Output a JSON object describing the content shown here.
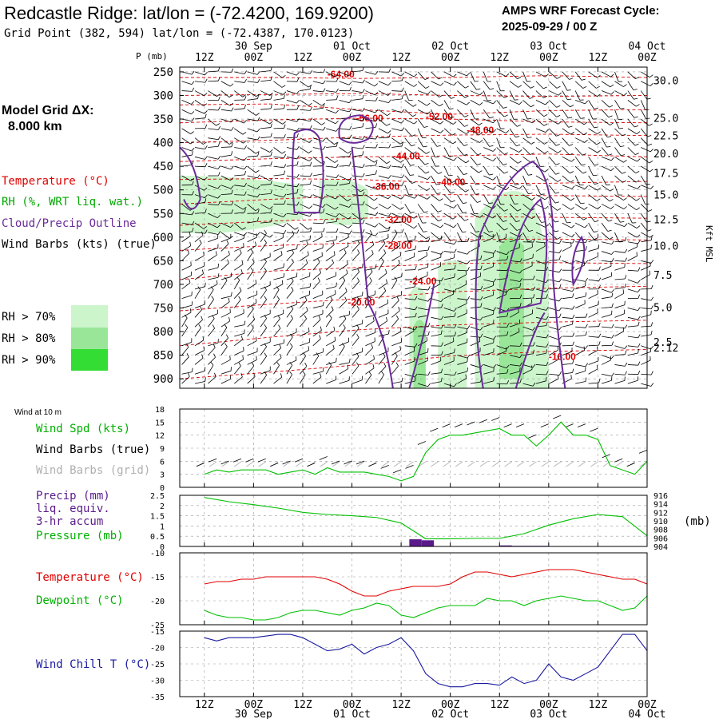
{
  "header": {
    "title": "Redcastle Ridge:  lat/lon = (-72.4200, 169.9200)",
    "subtitle": "Grid Point (382, 594) lat/lon = (-72.4387, 170.0123)",
    "cycle_label": "AMPS WRF Forecast Cycle:",
    "cycle_value": "2025-09-29 / 00  Z"
  },
  "time_axis": {
    "hours": [
      "12Z",
      "00Z",
      "12Z",
      "00Z",
      "12Z",
      "00Z",
      "12Z",
      "00Z",
      "12Z",
      "00Z"
    ],
    "dates": [
      "30 Sep",
      "01 Oct",
      "02 Oct",
      "03 Oct",
      "04 Oct"
    ]
  },
  "left_legend": {
    "grid_label": "Model Grid ΔX:",
    "grid_value": "8.000 km",
    "temperature": "Temperature (°C)",
    "rh": "RH (%, WRT liq. wat.)",
    "cloud": "Cloud/Precip Outline",
    "wind": "Wind Barbs (kts) (true)",
    "rh_levels": [
      "RH > 70%",
      "RH > 80%",
      "RH > 90%"
    ]
  },
  "colors": {
    "temperature": "#e00000",
    "dewpoint": "#00c000",
    "rh": "#00b000",
    "cloud": "#6a2a9a",
    "wind_chill": "#1a1aa0",
    "grid_wind": "#b0b0b0",
    "rh70": "#ccf5cc",
    "rh80": "#99e699",
    "rh90": "#33dd33",
    "precip": "#5a1a8a"
  },
  "chart_data": [
    {
      "type": "line",
      "name": "upper-air time-height section",
      "ylabel": "P (mb)",
      "ylabel_right": "Kft MSL",
      "pressure_ticks": [
        250,
        300,
        350,
        400,
        450,
        500,
        550,
        600,
        650,
        700,
        750,
        800,
        850,
        900
      ],
      "height_ticks": [
        {
          "label": "30.0",
          "p": 268
        },
        {
          "label": "25.0",
          "p": 347
        },
        {
          "label": "22.5",
          "p": 385
        },
        {
          "label": "20.0",
          "p": 423
        },
        {
          "label": "17.5",
          "p": 464
        },
        {
          "label": "15.0",
          "p": 510
        },
        {
          "label": "12.5",
          "p": 562
        },
        {
          "label": "10.0",
          "p": 618
        },
        {
          "label": "7.5",
          "p": 680
        },
        {
          "label": "5.0",
          "p": 748
        },
        {
          "label": "2.5",
          "p": 822
        },
        {
          "label": "2.12",
          "p": 834
        }
      ],
      "ylim": [
        240,
        920
      ],
      "temperature_labels": [
        {
          "text": "-64.00",
          "hour": 42,
          "p": 262
        },
        {
          "text": "-56.00",
          "hour": 49,
          "p": 355
        },
        {
          "text": "-52.00",
          "hour": 66,
          "p": 352
        },
        {
          "text": "-48.00",
          "hour": 76,
          "p": 380
        },
        {
          "text": "-44.00",
          "hour": 58,
          "p": 435
        },
        {
          "text": "-40.00",
          "hour": 69,
          "p": 490
        },
        {
          "text": "-36.00",
          "hour": 53,
          "p": 500
        },
        {
          "text": "-32.00",
          "hour": 56,
          "p": 570
        },
        {
          "text": "-28.00",
          "hour": 56,
          "p": 625
        },
        {
          "text": "-24.00",
          "hour": 62,
          "p": 700
        },
        {
          "text": "-20.00",
          "hour": 47,
          "p": 745
        },
        {
          "text": "-16.00",
          "hour": 96,
          "p": 860
        }
      ]
    },
    {
      "type": "line",
      "name": "10 m wind",
      "panel_label": "Wind at 10 m",
      "series_labels": [
        "Wind Spd (kts)",
        "Wind Barbs (true)",
        "Wind Barbs (grid)"
      ],
      "yticks": [
        0,
        3,
        6,
        9,
        12,
        15,
        18
      ],
      "ylim": [
        0,
        18
      ],
      "x_hours": [
        12,
        15,
        18,
        21,
        24,
        27,
        30,
        33,
        36,
        39,
        42,
        45,
        48,
        51,
        54,
        57,
        60,
        63,
        66,
        69,
        72,
        75,
        78,
        81,
        84,
        87,
        90,
        93,
        96,
        99,
        102,
        105,
        108,
        111,
        114,
        117,
        120
      ],
      "values": [
        3,
        4,
        3.5,
        4,
        4,
        4,
        3,
        3.5,
        4,
        3,
        4.5,
        3.5,
        3.5,
        3.5,
        3,
        2.5,
        1.5,
        2.5,
        8,
        11,
        12,
        12,
        12.5,
        13,
        13.5,
        12,
        12,
        9.5,
        12,
        15,
        12,
        12,
        11,
        5,
        4,
        3,
        6
      ]
    },
    {
      "type": "bar",
      "name": "precipitation and pressure",
      "series_labels": [
        "Precip (mm)",
        "liq. equiv.",
        "3-hr accum",
        "Pressure (mb)"
      ],
      "units_right": "(mb)",
      "precip_ticks": [
        0.0,
        0.5,
        1.0,
        1.5,
        2.0,
        2.5
      ],
      "precip_ylim": [
        0,
        2.5
      ],
      "pressure_ticks": [
        904,
        906,
        908,
        910,
        912,
        914,
        916
      ],
      "pressure_ylim": [
        904,
        916
      ],
      "x_hours": [
        12,
        18,
        24,
        30,
        36,
        42,
        48,
        54,
        60,
        66,
        72,
        78,
        84,
        90,
        96,
        102,
        108,
        114,
        120
      ],
      "pressure": [
        915.5,
        914.5,
        913.8,
        913,
        912,
        911.5,
        911.2,
        910.8,
        909.5,
        905.8,
        905.8,
        905.9,
        905.9,
        907,
        909,
        910.5,
        911.5,
        911,
        906.5
      ],
      "precip": [
        {
          "start": 62,
          "end": 65,
          "value": 0.35
        },
        {
          "start": 65,
          "end": 68,
          "value": 0.3
        },
        {
          "start": 84,
          "end": 87,
          "value": 0.05
        },
        {
          "start": 87,
          "end": 96,
          "value": 0.03
        }
      ]
    },
    {
      "type": "line",
      "name": "temperature and dewpoint",
      "series_labels": [
        "Temperature (°C)",
        "Dewpoint (°C)"
      ],
      "yticks": [
        -10,
        -15,
        -20,
        -25
      ],
      "ylim": [
        -25,
        -10
      ],
      "x_hours": [
        12,
        15,
        18,
        21,
        24,
        27,
        30,
        33,
        36,
        39,
        42,
        45,
        48,
        51,
        54,
        57,
        60,
        63,
        66,
        69,
        72,
        75,
        78,
        81,
        84,
        87,
        90,
        93,
        96,
        99,
        102,
        105,
        108,
        111,
        114,
        117,
        120
      ],
      "temperature": [
        -16.5,
        -16,
        -16,
        -15.5,
        -15.5,
        -15,
        -15,
        -15,
        -15,
        -15,
        -15.5,
        -16.5,
        -18,
        -19,
        -19,
        -18,
        -17.5,
        -17,
        -17,
        -17,
        -16.5,
        -15,
        -14,
        -14,
        -14.5,
        -15,
        -14.5,
        -14,
        -13.5,
        -13.5,
        -13.5,
        -14,
        -14.5,
        -15,
        -15.5,
        -15.5,
        -16.5
      ],
      "dewpoint": [
        -22,
        -23,
        -23.5,
        -23.5,
        -24,
        -24,
        -23.5,
        -22.5,
        -22,
        -22,
        -22.5,
        -23,
        -22,
        -21.5,
        -20.5,
        -21,
        -23,
        -23.5,
        -22.5,
        -21.5,
        -21,
        -21,
        -21,
        -19.5,
        -20,
        -20,
        -21,
        -20,
        -19.5,
        -19,
        -19.5,
        -20,
        -20,
        -21,
        -22,
        -21.5,
        -19
      ]
    },
    {
      "type": "line",
      "name": "wind chill",
      "series_labels": [
        "Wind Chill T (°C)"
      ],
      "yticks": [
        -15,
        -20,
        -25,
        -30,
        -35
      ],
      "ylim": [
        -35,
        -15
      ],
      "x_hours": [
        12,
        15,
        18,
        21,
        24,
        27,
        30,
        33,
        36,
        39,
        42,
        45,
        48,
        51,
        54,
        57,
        60,
        63,
        66,
        69,
        72,
        75,
        78,
        81,
        84,
        87,
        90,
        93,
        96,
        99,
        102,
        105,
        108,
        111,
        114,
        117,
        120
      ],
      "values": [
        -17,
        -18,
        -17,
        -17,
        -17,
        -16.5,
        -16,
        -16,
        -17,
        -19,
        -21,
        -20.5,
        -19,
        -22,
        -20,
        -19,
        -17,
        -21,
        -28,
        -31,
        -32,
        -32,
        -31,
        -31,
        -31.5,
        -29,
        -31,
        -30,
        -25,
        -29,
        -30,
        -28,
        -26,
        -21,
        -16,
        -16,
        -21
      ]
    }
  ]
}
